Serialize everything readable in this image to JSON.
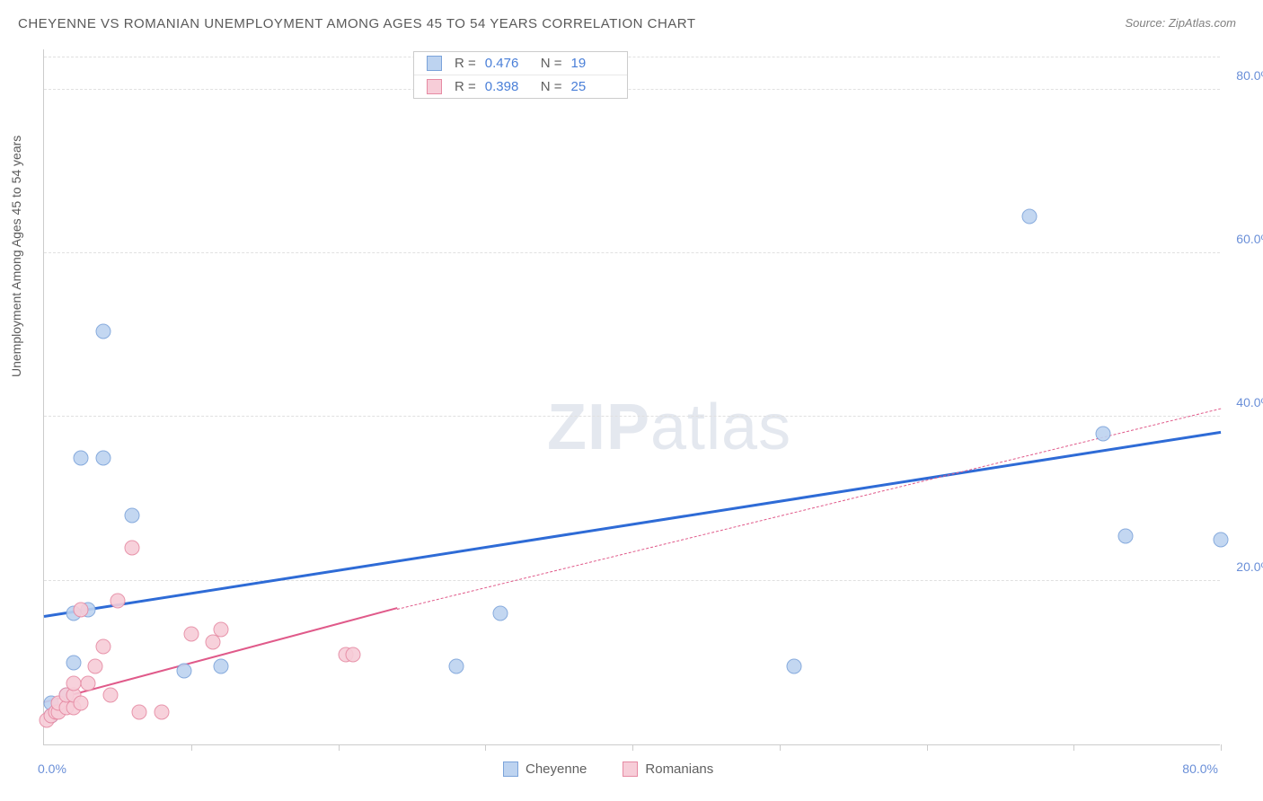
{
  "title": "CHEYENNE VS ROMANIAN UNEMPLOYMENT AMONG AGES 45 TO 54 YEARS CORRELATION CHART",
  "source": "Source: ZipAtlas.com",
  "y_axis_label": "Unemployment Among Ages 45 to 54 years",
  "watermark_bold": "ZIP",
  "watermark_light": "atlas",
  "chart": {
    "type": "scatter",
    "background_color": "#ffffff",
    "grid_color": "#e0e0e0",
    "grid_style": "dashed",
    "axis_color": "#cccccc",
    "tick_label_color": "#6a8fd8",
    "tick_label_fontsize": 14,
    "title_color": "#5a5a5a",
    "title_fontsize": 15,
    "xlim": [
      0,
      80
    ],
    "ylim": [
      0,
      85
    ],
    "y_ticks": [
      20,
      40,
      60,
      80
    ],
    "y_tick_labels": [
      "20.0%",
      "40.0%",
      "60.0%",
      "80.0%"
    ],
    "x_ticks": [
      10,
      20,
      30,
      40,
      50,
      60,
      70,
      80
    ],
    "x_origin_label": "0.0%",
    "x_max_label": "80.0%",
    "marker_radius": 8.5,
    "marker_border_width": 1,
    "series": [
      {
        "name": "Cheyenne",
        "fill_color": "#bdd3f0",
        "border_color": "#7ba3da",
        "R": "0.476",
        "N": "19",
        "points": [
          [
            0.5,
            3.5
          ],
          [
            0.5,
            5.0
          ],
          [
            1.5,
            6.0
          ],
          [
            2.0,
            10.0
          ],
          [
            2.0,
            16.0
          ],
          [
            3.0,
            16.5
          ],
          [
            2.5,
            35.0
          ],
          [
            4.0,
            35.0
          ],
          [
            4.0,
            50.5
          ],
          [
            6.0,
            28.0
          ],
          [
            9.5,
            9.0
          ],
          [
            12.0,
            9.5
          ],
          [
            28.0,
            9.5
          ],
          [
            31.0,
            16.0
          ],
          [
            51.0,
            9.5
          ],
          [
            67.0,
            64.5
          ],
          [
            72.0,
            38.0
          ],
          [
            73.5,
            25.5
          ],
          [
            80.0,
            25.0
          ]
        ],
        "trend": {
          "color": "#2e6bd6",
          "width": 3,
          "solid_from": [
            0,
            15.5
          ],
          "solid_to": [
            80,
            38.0
          ],
          "dash_from": null,
          "dash_to": null
        }
      },
      {
        "name": "Romanians",
        "fill_color": "#f7cdd8",
        "border_color": "#e68aa3",
        "R": "0.398",
        "N": "25",
        "points": [
          [
            0.2,
            3.0
          ],
          [
            0.5,
            3.5
          ],
          [
            0.8,
            4.0
          ],
          [
            1.0,
            4.0
          ],
          [
            1.0,
            5.0
          ],
          [
            1.5,
            4.5
          ],
          [
            1.5,
            6.0
          ],
          [
            2.0,
            4.5
          ],
          [
            2.0,
            6.0
          ],
          [
            2.0,
            7.5
          ],
          [
            2.5,
            5.0
          ],
          [
            2.5,
            16.5
          ],
          [
            3.0,
            7.5
          ],
          [
            3.5,
            9.5
          ],
          [
            4.0,
            12.0
          ],
          [
            4.5,
            6.0
          ],
          [
            5.0,
            17.5
          ],
          [
            6.0,
            24.0
          ],
          [
            6.5,
            4.0
          ],
          [
            8.0,
            4.0
          ],
          [
            10.0,
            13.5
          ],
          [
            11.5,
            12.5
          ],
          [
            12.0,
            14.0
          ],
          [
            20.5,
            11.0
          ],
          [
            21.0,
            11.0
          ]
        ],
        "trend": {
          "color": "#e05a8a",
          "width": 2.5,
          "solid_from": [
            0,
            5.0
          ],
          "solid_to": [
            24,
            16.5
          ],
          "dash_from": [
            24,
            16.5
          ],
          "dash_to": [
            80,
            41.0
          ]
        }
      }
    ]
  },
  "stats_legend": {
    "r_label": "R =",
    "n_label": "N ="
  },
  "bottom_legend": {
    "items": [
      "Cheyenne",
      "Romanians"
    ]
  }
}
